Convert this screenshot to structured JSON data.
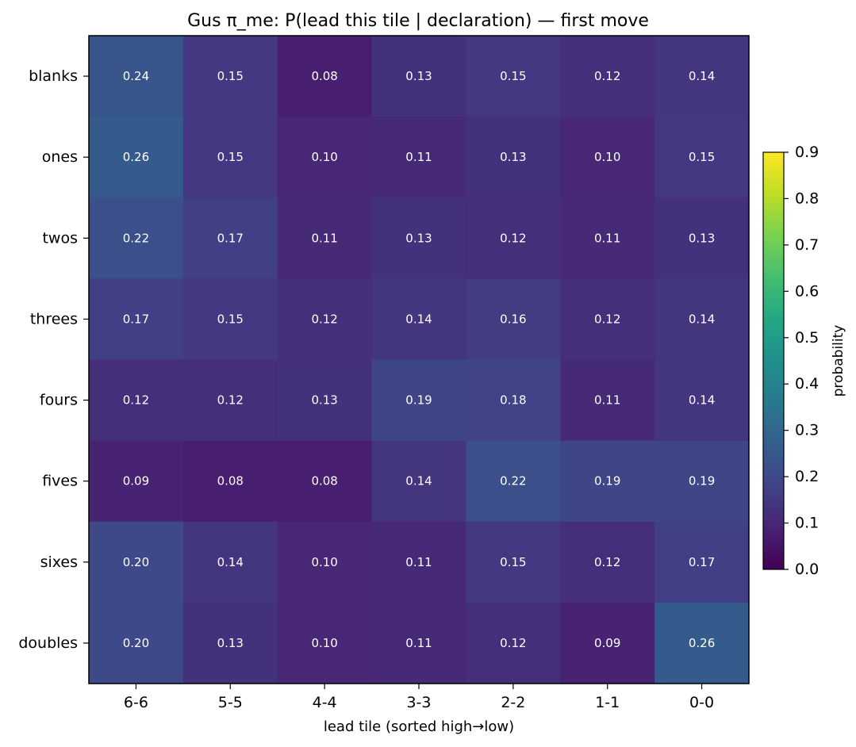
{
  "chart_data": {
    "type": "heatmap",
    "title": "Gus π_me: P(lead this tile | declaration) — first move",
    "xlabel": "lead tile (sorted high→low)",
    "ylabel": "",
    "x_categories": [
      "6-6",
      "5-5",
      "4-4",
      "3-3",
      "2-2",
      "1-1",
      "0-0"
    ],
    "y_categories": [
      "blanks",
      "ones",
      "twos",
      "threes",
      "fours",
      "fives",
      "sixes",
      "doubles"
    ],
    "values": [
      [
        0.24,
        0.15,
        0.08,
        0.13,
        0.15,
        0.12,
        0.14
      ],
      [
        0.26,
        0.15,
        0.1,
        0.11,
        0.13,
        0.1,
        0.15
      ],
      [
        0.22,
        0.17,
        0.11,
        0.13,
        0.12,
        0.11,
        0.13
      ],
      [
        0.17,
        0.15,
        0.12,
        0.14,
        0.16,
        0.12,
        0.14
      ],
      [
        0.12,
        0.12,
        0.13,
        0.19,
        0.18,
        0.11,
        0.14
      ],
      [
        0.09,
        0.08,
        0.08,
        0.14,
        0.22,
        0.19,
        0.19
      ],
      [
        0.2,
        0.14,
        0.1,
        0.11,
        0.15,
        0.12,
        0.17
      ],
      [
        0.2,
        0.13,
        0.1,
        0.11,
        0.12,
        0.09,
        0.26
      ]
    ],
    "value_labels": [
      [
        "0.24",
        "0.15",
        "0.08",
        "0.13",
        "0.15",
        "0.12",
        "0.14"
      ],
      [
        "0.26",
        "0.15",
        "0.10",
        "0.11",
        "0.13",
        "0.10",
        "0.15"
      ],
      [
        "0.22",
        "0.17",
        "0.11",
        "0.13",
        "0.12",
        "0.11",
        "0.13"
      ],
      [
        "0.17",
        "0.15",
        "0.12",
        "0.14",
        "0.16",
        "0.12",
        "0.14"
      ],
      [
        "0.12",
        "0.12",
        "0.13",
        "0.19",
        "0.18",
        "0.11",
        "0.14"
      ],
      [
        "0.09",
        "0.08",
        "0.08",
        "0.14",
        "0.22",
        "0.19",
        "0.19"
      ],
      [
        "0.20",
        "0.14",
        "0.10",
        "0.11",
        "0.15",
        "0.12",
        "0.17"
      ],
      [
        "0.20",
        "0.13",
        "0.10",
        "0.11",
        "0.12",
        "0.09",
        "0.26"
      ]
    ],
    "colormap": "viridis",
    "vmin": 0.0,
    "vmax": 0.9,
    "colorbar": {
      "label": "probability",
      "ticks": [
        0.0,
        0.1,
        0.2,
        0.3,
        0.4,
        0.5,
        0.6,
        0.7,
        0.8,
        0.9
      ],
      "tick_labels": [
        "0.0",
        "0.1",
        "0.2",
        "0.3",
        "0.4",
        "0.5",
        "0.6",
        "0.7",
        "0.8",
        "0.9"
      ]
    },
    "cell_text_color": "#ffffff",
    "grid": false
  }
}
